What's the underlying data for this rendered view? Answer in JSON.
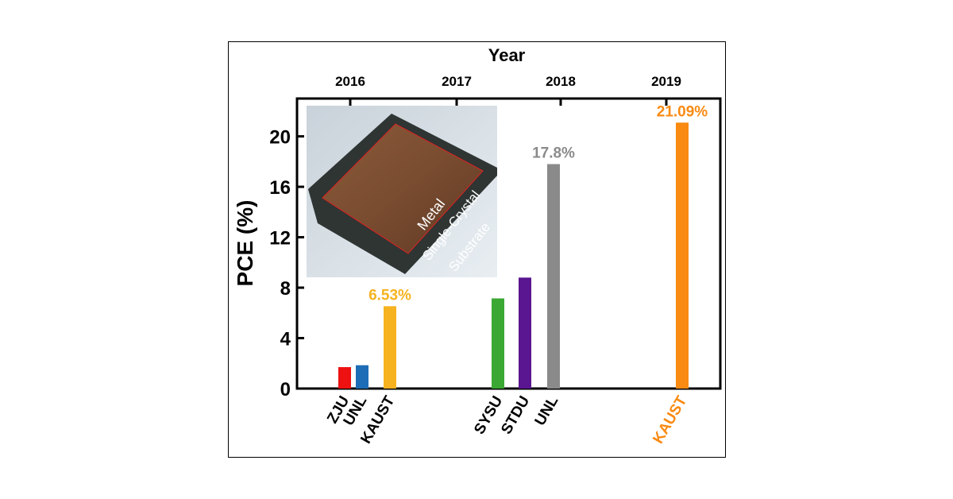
{
  "chart_data": {
    "type": "bar",
    "xlabel": "Year",
    "ylabel": "PCE (%)",
    "ylim": [
      0,
      23
    ],
    "y_ticks": [
      "0",
      "4",
      "8",
      "12",
      "16",
      "20"
    ],
    "year_ticks": [
      "2016",
      "2017",
      "2018",
      "2019"
    ],
    "bars": [
      {
        "category": "ZJU",
        "value": 1.7,
        "color": "#ee1111",
        "label": "",
        "label_color": "#000000"
      },
      {
        "category": "UNL",
        "value": 1.85,
        "color": "#1c6db5",
        "label": "",
        "label_color": "#000000"
      },
      {
        "category": "KAUST",
        "value": 6.53,
        "color": "#f6b21f",
        "label": "6.53%",
        "label_color": "#f6b21f"
      },
      {
        "category": "SYSU",
        "value": 7.15,
        "color": "#3aa832",
        "label": "",
        "label_color": "#000000"
      },
      {
        "category": "STDU",
        "value": 8.8,
        "color": "#5a1590",
        "label": "",
        "label_color": "#000000"
      },
      {
        "category": "UNL",
        "value": 17.8,
        "color": "#8a8a8a",
        "label": "17.8%",
        "label_color": "#8a8a8a"
      },
      {
        "category": "KAUST",
        "value": 21.09,
        "color": "#f98a12",
        "label": "21.09%",
        "label_color": "#f98a12"
      }
    ],
    "inset_image": {
      "description_icon": "crystal-photo",
      "text_lines": [
        "Metal",
        "Single-Crystal",
        "Substrate"
      ]
    },
    "grid": false,
    "legend": "none"
  }
}
